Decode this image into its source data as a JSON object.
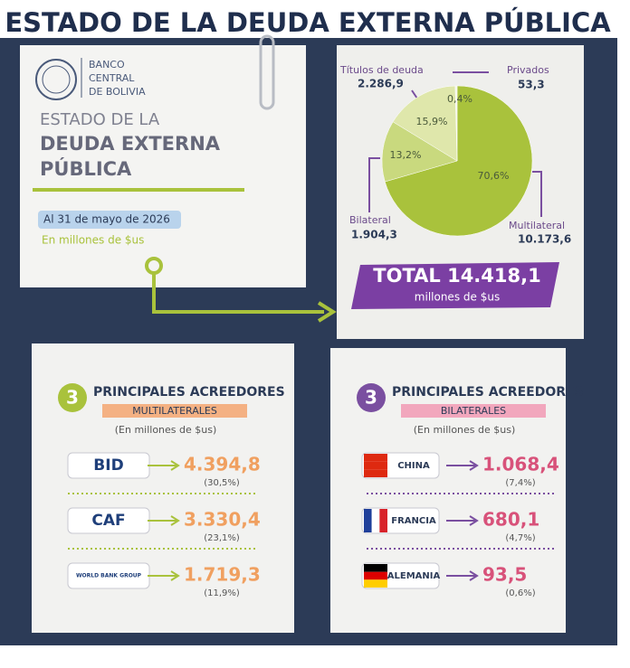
{
  "header": {
    "title": "ESTADO DE LA DEUDA EXTERNA PÚBLICA"
  },
  "bank": {
    "name_lines": [
      "BANCO",
      "CENTRAL",
      "DE BOLIVIA"
    ]
  },
  "intro": {
    "title_lines": [
      "ESTADO DE LA",
      "DEUDA EXTERNA",
      "PÚBLICA"
    ],
    "date": "Al 31 de mayo de 2026",
    "unit": "En millones de $us"
  },
  "chart_data": {
    "type": "pie",
    "categories": [
      "Multilateral",
      "Bilateral",
      "Títulos de deuda",
      "Privados"
    ],
    "values": [
      70.6,
      13.2,
      15.9,
      0.4
    ],
    "value_labels": [
      "70,6%",
      "13,2%",
      "15,9%",
      "0,4%"
    ],
    "amounts": [
      "10.173,6",
      "1.904,3",
      "2.286,9",
      "53,3"
    ],
    "colors": [
      "#a9c23c",
      "#c9d97e",
      "#dfe7ab",
      "#f6f6ea"
    ]
  },
  "total": {
    "label": "TOTAL 14.418,1",
    "unit": "millones de $us"
  },
  "multilateral": {
    "number": "3",
    "heading": "PRINCIPALES ACREEDORES",
    "subtitle": "MULTILATERALES",
    "unit": "(En millones de $us)",
    "rows": [
      {
        "name": "BID",
        "amount": "4.394,8",
        "share": "(30,5%)"
      },
      {
        "name": "CAF",
        "amount": "3.330,4",
        "share": "(23,1%)"
      },
      {
        "name": "WORLD BANK GROUP",
        "amount": "1.719,3",
        "share": "(11,9%)"
      }
    ]
  },
  "bilateral": {
    "number": "3",
    "heading": "PRINCIPALES ACREEDORES",
    "subtitle": "BILATERALES",
    "unit": "(En millones de $us)",
    "rows": [
      {
        "name": "CHINA",
        "amount": "1.068,4",
        "share": "(7,4%)"
      },
      {
        "name": "FRANCIA",
        "amount": "680,1",
        "share": "(4,7%)"
      },
      {
        "name": "ALEMANIA",
        "amount": "93,5",
        "share": "(0,6%)"
      }
    ]
  }
}
